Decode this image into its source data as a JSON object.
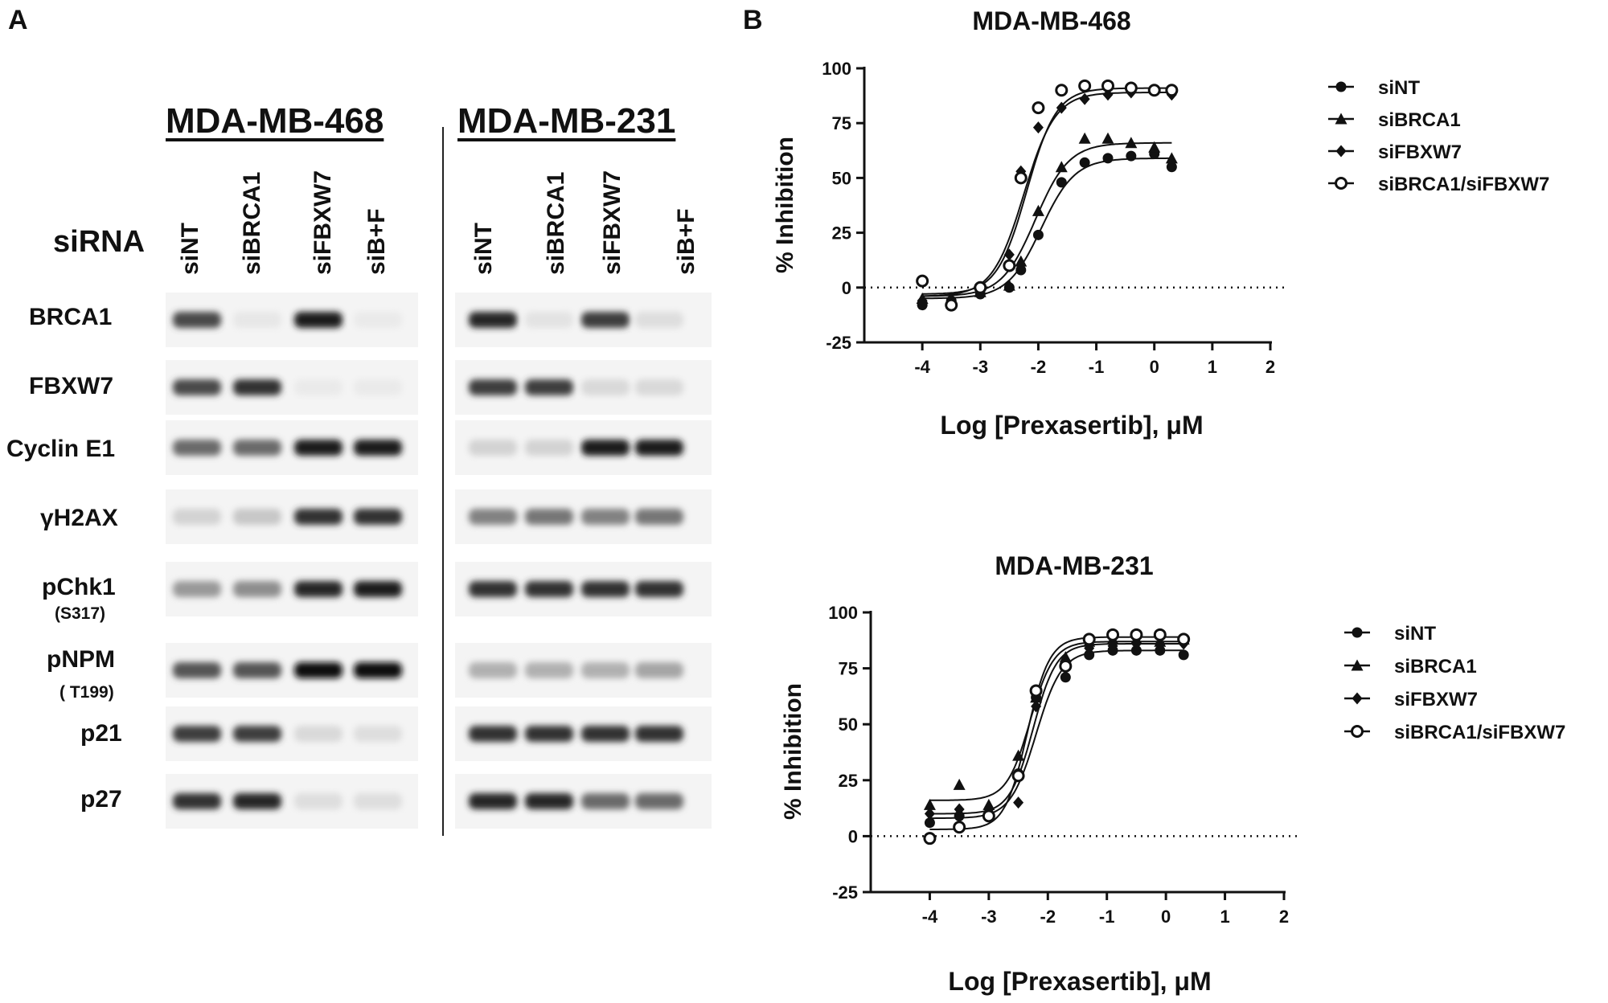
{
  "panel_labels": {
    "a": "A",
    "b": "B"
  },
  "western_blot": {
    "sirna_label": "siRNA",
    "cell_lines": [
      "MDA-MB-468",
      "MDA-MB-231"
    ],
    "lanes": [
      "siNT",
      "siBRCA1",
      "siFBXW7",
      "siB+F"
    ],
    "rows": [
      {
        "label": "BRCA1",
        "sublabel": "",
        "band_intensity": [
          [
            0.75,
            0.06,
            0.95,
            0.05
          ],
          [
            0.9,
            0.08,
            0.8,
            0.1
          ]
        ]
      },
      {
        "label": "FBXW7",
        "sublabel": "",
        "band_intensity": [
          [
            0.75,
            0.85,
            0.05,
            0.05
          ],
          [
            0.8,
            0.8,
            0.12,
            0.12
          ]
        ]
      },
      {
        "label": "Cyclin E1",
        "sublabel": "",
        "band_intensity": [
          [
            0.6,
            0.6,
            0.95,
            0.95
          ],
          [
            0.15,
            0.15,
            0.95,
            0.95
          ]
        ]
      },
      {
        "label": "γH2AX",
        "sublabel": "",
        "band_intensity": [
          [
            0.15,
            0.2,
            0.85,
            0.85
          ],
          [
            0.5,
            0.55,
            0.5,
            0.55
          ]
        ]
      },
      {
        "label": "pChk1",
        "sublabel": "(S317)",
        "band_intensity": [
          [
            0.4,
            0.45,
            0.9,
            0.95
          ],
          [
            0.85,
            0.85,
            0.85,
            0.85
          ]
        ]
      },
      {
        "label": "pNPM",
        "sublabel": "( T199)",
        "band_intensity": [
          [
            0.7,
            0.7,
            1.0,
            1.0
          ],
          [
            0.3,
            0.3,
            0.3,
            0.35
          ]
        ]
      },
      {
        "label": "p21",
        "sublabel": "",
        "band_intensity": [
          [
            0.8,
            0.8,
            0.12,
            0.1
          ],
          [
            0.85,
            0.85,
            0.85,
            0.85
          ]
        ]
      },
      {
        "label": "p27",
        "sublabel": "",
        "band_intensity": [
          [
            0.85,
            0.9,
            0.1,
            0.1
          ],
          [
            0.9,
            0.9,
            0.6,
            0.6
          ]
        ]
      }
    ]
  },
  "chart_data": [
    {
      "type": "scatter",
      "title": "MDA-MB-468",
      "xlabel": "Log [Prexasertib], μM",
      "ylabel": "% Inhibition",
      "xlim": [
        -5,
        2
      ],
      "ylim": [
        -25,
        100
      ],
      "xticks": [
        "-4",
        "-3",
        "-2",
        "-1",
        "0",
        "1",
        "2"
      ],
      "yticks": [
        "-25",
        "0",
        "25",
        "50",
        "75",
        "100"
      ],
      "legend_position": "right",
      "reference_line_y": 0,
      "series": [
        {
          "name": "siNT",
          "marker": "filled-circle",
          "x": [
            -4,
            -3.5,
            -3,
            -2.5,
            -2.3,
            -2,
            -1.6,
            -1.2,
            -0.8,
            -0.4,
            0,
            0.3
          ],
          "y": [
            -8,
            -6,
            -3,
            0,
            8,
            24,
            48,
            57,
            59,
            60,
            61,
            55
          ],
          "fit": {
            "bottom": -5,
            "top": 59,
            "logec50": -1.95,
            "hill": 1.5
          }
        },
        {
          "name": "siBRCA1",
          "marker": "filled-triangle",
          "x": [
            -4,
            -3.5,
            -3,
            -2.5,
            -2.3,
            -2,
            -1.6,
            -1.2,
            -0.8,
            -0.4,
            0,
            0.3
          ],
          "y": [
            -5,
            -5,
            -2,
            1,
            12,
            35,
            55,
            68,
            68,
            66,
            64,
            59
          ],
          "fit": {
            "bottom": -4,
            "top": 66,
            "logec50": -2.05,
            "hill": 1.5
          }
        },
        {
          "name": "siFBXW7",
          "marker": "filled-diamond",
          "x": [
            -4,
            -3.5,
            -3,
            -2.5,
            -2.3,
            -2,
            -1.6,
            -1.2,
            -0.8,
            -0.4,
            0,
            0.3
          ],
          "y": [
            -6,
            -8,
            -1,
            15,
            53,
            73,
            82,
            86,
            88,
            89,
            90,
            88
          ],
          "fit": {
            "bottom": -4,
            "top": 89,
            "logec50": -2.25,
            "hill": 1.6
          }
        },
        {
          "name": "siBRCA1/siFBXW7",
          "marker": "open-circle",
          "x": [
            -4,
            -3.5,
            -3,
            -2.5,
            -2.3,
            -2,
            -1.6,
            -1.2,
            -0.8,
            -0.4,
            0,
            0.3
          ],
          "y": [
            3,
            -8,
            0,
            10,
            50,
            82,
            90,
            92,
            92,
            91,
            90,
            90
          ],
          "fit": {
            "bottom": -3,
            "top": 91,
            "logec50": -2.2,
            "hill": 1.7
          }
        }
      ]
    },
    {
      "type": "scatter",
      "title": "MDA-MB-231",
      "xlabel": "Log [Prexasertib], μM",
      "ylabel": "% Inhibition",
      "xlim": [
        -5,
        2
      ],
      "ylim": [
        -25,
        100
      ],
      "xticks": [
        "-4",
        "-3",
        "-2",
        "-1",
        "0",
        "1",
        "2"
      ],
      "yticks": [
        "-25",
        "0",
        "25",
        "50",
        "75",
        "100"
      ],
      "legend_position": "right",
      "reference_line_y": 0,
      "series": [
        {
          "name": "siNT",
          "marker": "filled-circle",
          "x": [
            -4,
            -3.5,
            -3,
            -2.5,
            -2.2,
            -1.7,
            -1.3,
            -0.9,
            -0.5,
            -0.1,
            0.3
          ],
          "y": [
            6,
            9,
            10,
            28,
            62,
            71,
            81,
            83,
            83,
            83,
            81
          ],
          "fit": {
            "bottom": 8,
            "top": 83,
            "logec50": -2.2,
            "hill": 2.0
          }
        },
        {
          "name": "siBRCA1",
          "marker": "filled-triangle",
          "x": [
            -4,
            -3.5,
            -3,
            -2.5,
            -2.2,
            -1.7,
            -1.3,
            -0.9,
            -0.5,
            -0.1,
            0.3
          ],
          "y": [
            14,
            23,
            14,
            36,
            62,
            80,
            87,
            88,
            88,
            87,
            88
          ],
          "fit": {
            "bottom": 16,
            "top": 87,
            "logec50": -2.3,
            "hill": 2.2
          }
        },
        {
          "name": "siFBXW7",
          "marker": "filled-diamond",
          "x": [
            -4,
            -3.5,
            -3,
            -2.5,
            -2.2,
            -1.7,
            -1.3,
            -0.9,
            -0.5,
            -0.1,
            0.3
          ],
          "y": [
            10,
            12,
            12,
            15,
            58,
            77,
            84,
            85,
            86,
            86,
            86
          ],
          "fit": {
            "bottom": 10,
            "top": 86,
            "logec50": -2.25,
            "hill": 2.2
          }
        },
        {
          "name": "siBRCA1/siFBXW7",
          "marker": "open-circle",
          "x": [
            -4,
            -3.5,
            -3,
            -2.5,
            -2.2,
            -1.7,
            -1.3,
            -0.9,
            -0.5,
            -0.1,
            0.3
          ],
          "y": [
            -1,
            4,
            9,
            27,
            65,
            76,
            88,
            90,
            90,
            90,
            88
          ],
          "fit": {
            "bottom": 3,
            "top": 89,
            "logec50": -2.35,
            "hill": 2.3
          }
        }
      ]
    }
  ]
}
